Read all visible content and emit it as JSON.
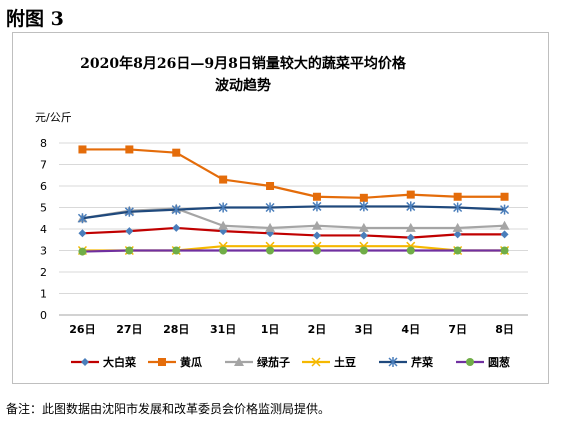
{
  "figure_label": "附图 3",
  "footnote": "备注：此图数据由沈阳市发展和改革委员会价格监测局提供。",
  "chart_data": {
    "type": "line",
    "title_line1": "2020年8月26日—9月8日销量较大的蔬菜平均价格",
    "title_line2": "波动趋势",
    "ylabel": "元/公斤",
    "xlabel": "",
    "ylim": [
      0,
      8
    ],
    "yticks": [
      0,
      1,
      2,
      3,
      4,
      5,
      6,
      7,
      8
    ],
    "grid": true,
    "legend_position": "bottom",
    "categories": [
      "26日",
      "27日",
      "28日",
      "31日",
      "1日",
      "2日",
      "3日",
      "4日",
      "7日",
      "8日"
    ],
    "series": [
      {
        "name": "大白菜",
        "color": "#c00000",
        "marker": "diamond",
        "marker_color": "#4a7ebb",
        "values": [
          3.8,
          3.9,
          4.05,
          3.9,
          3.8,
          3.7,
          3.7,
          3.6,
          3.75,
          3.75
        ]
      },
      {
        "name": "黄瓜",
        "color": "#e46c0a",
        "marker": "square",
        "marker_color": "#e46c0a",
        "values": [
          7.7,
          7.7,
          7.55,
          6.3,
          6.0,
          5.5,
          5.45,
          5.6,
          5.5,
          5.5
        ]
      },
      {
        "name": "绿茄子",
        "color": "#a5a5a5",
        "marker": "triangle",
        "marker_color": "#a5a5a5",
        "values": [
          4.5,
          4.85,
          4.95,
          4.15,
          4.05,
          4.15,
          4.05,
          4.05,
          4.05,
          4.15
        ]
      },
      {
        "name": "土豆",
        "color": "#f5b800",
        "marker": "x",
        "marker_color": "#f5b800",
        "values": [
          3.0,
          3.0,
          3.0,
          3.2,
          3.2,
          3.2,
          3.2,
          3.2,
          3.0,
          3.0
        ]
      },
      {
        "name": "芹菜",
        "color": "#1f497d",
        "marker": "star",
        "marker_color": "#4a7ebb",
        "values": [
          4.5,
          4.8,
          4.9,
          5.0,
          5.0,
          5.05,
          5.05,
          5.05,
          5.0,
          4.9
        ]
      },
      {
        "name": "圆葱",
        "color": "#7030a0",
        "marker": "circle",
        "marker_color": "#70ad47",
        "values": [
          2.95,
          3.0,
          3.0,
          3.0,
          3.0,
          3.0,
          3.0,
          3.0,
          3.0,
          3.0
        ]
      }
    ]
  }
}
